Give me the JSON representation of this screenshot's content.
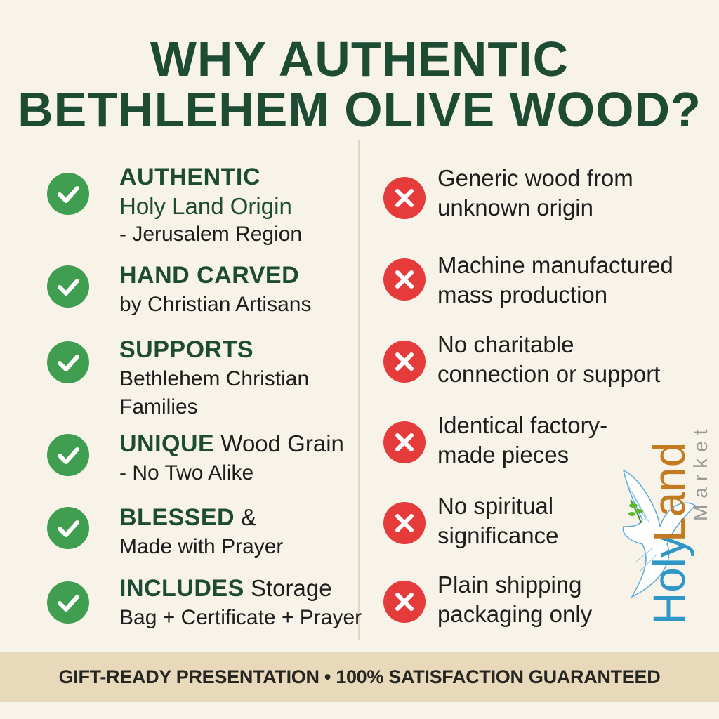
{
  "title": {
    "line1": "WHY AUTHENTIC",
    "line2": "BETHLEHEM OLIVE WOOD?"
  },
  "pros": [
    {
      "head": "AUTHENTIC",
      "rest": "",
      "line2": "Holy Land Origin",
      "line3": "- Jerusalem Region"
    },
    {
      "head": "HAND CARVED",
      "rest": "",
      "line2": "by Christian Artisans",
      "line3": ""
    },
    {
      "head": "SUPPORTS",
      "rest": "",
      "line2": "Bethlehem Christian",
      "line3": "Families"
    },
    {
      "head": "UNIQUE",
      "rest": " Wood Grain",
      "line2": "- No Two Alike",
      "line3": ""
    },
    {
      "head": "BLESSED",
      "rest": " &",
      "line2": "Made with Prayer",
      "line3": ""
    },
    {
      "head": "INCLUDES",
      "rest": " Storage",
      "line2": "Bag + Certificate + Prayer",
      "line3": ""
    }
  ],
  "cons": [
    {
      "line1": "Generic wood from",
      "line2": "unknown origin"
    },
    {
      "line1": "Machine manufactured",
      "line2": "mass production"
    },
    {
      "line1": "No charitable",
      "line2": "connection or support"
    },
    {
      "line1": "Identical factory-",
      "line2": "made pieces"
    },
    {
      "line1": "No spiritual",
      "line2": "significance"
    },
    {
      "line1": "Plain shipping",
      "line2": "packaging only"
    }
  ],
  "icons": {
    "pro": "check-circle-icon",
    "con": "x-circle-icon"
  },
  "colors": {
    "title": "#1d4b34",
    "check": "#3f9e4f",
    "cross": "#e53b3b",
    "band": "#e8d9bb",
    "background": "#f8f3e9"
  },
  "footer": "GIFT-READY PRESENTATION • 100% SATISFACTION GUARANTEED",
  "logo": {
    "word1": "Holy",
    "word2": "Land",
    "word3": "Market"
  }
}
